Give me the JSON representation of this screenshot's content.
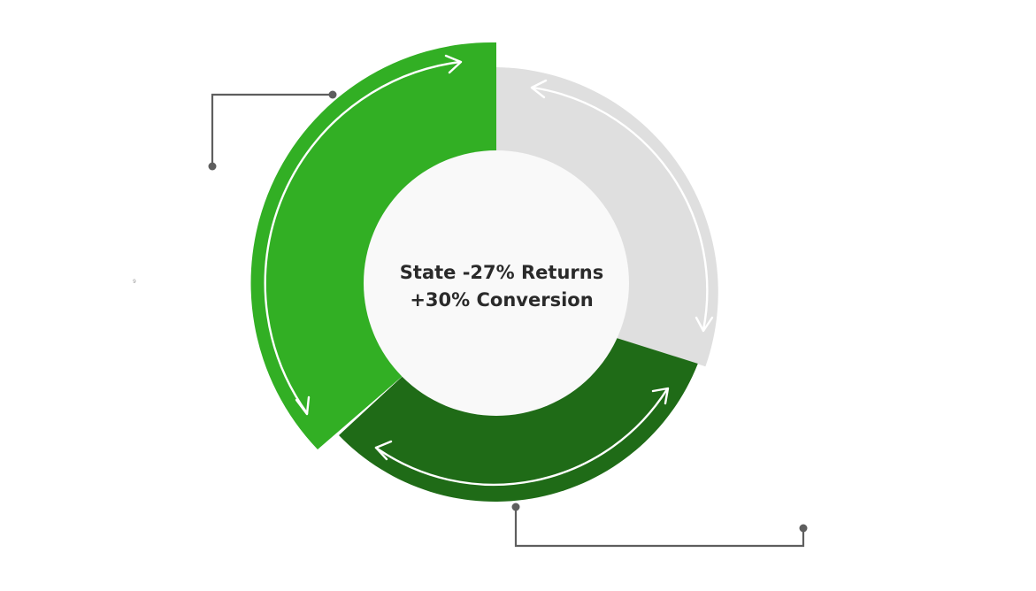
{
  "diagram": {
    "center": {
      "line1": "State -27% Returns",
      "line2": "+30% Conversion"
    },
    "stray_mark": "9",
    "colors": {
      "segment_primary": "#32af24",
      "segment_dark": "#1f6b17",
      "segment_neutral": "#dfdfdf",
      "hub": "#f9f9f9",
      "arrow": "#ffffff",
      "connector": "#5e5e5e",
      "text": "#2a2a2a"
    },
    "segments": [
      {
        "name": "green",
        "color_key": "segment_primary"
      },
      {
        "name": "dark-green",
        "color_key": "segment_dark"
      },
      {
        "name": "gray",
        "color_key": "segment_neutral"
      }
    ],
    "arrows": [
      {
        "name": "green-arrow",
        "direction": "counterclockwise"
      },
      {
        "name": "dark-green-arrow",
        "direction": "bidirectional"
      },
      {
        "name": "gray-arrow",
        "direction": "clockwise"
      }
    ],
    "connectors": [
      {
        "name": "top-left-connector"
      },
      {
        "name": "bottom-right-connector"
      }
    ]
  }
}
